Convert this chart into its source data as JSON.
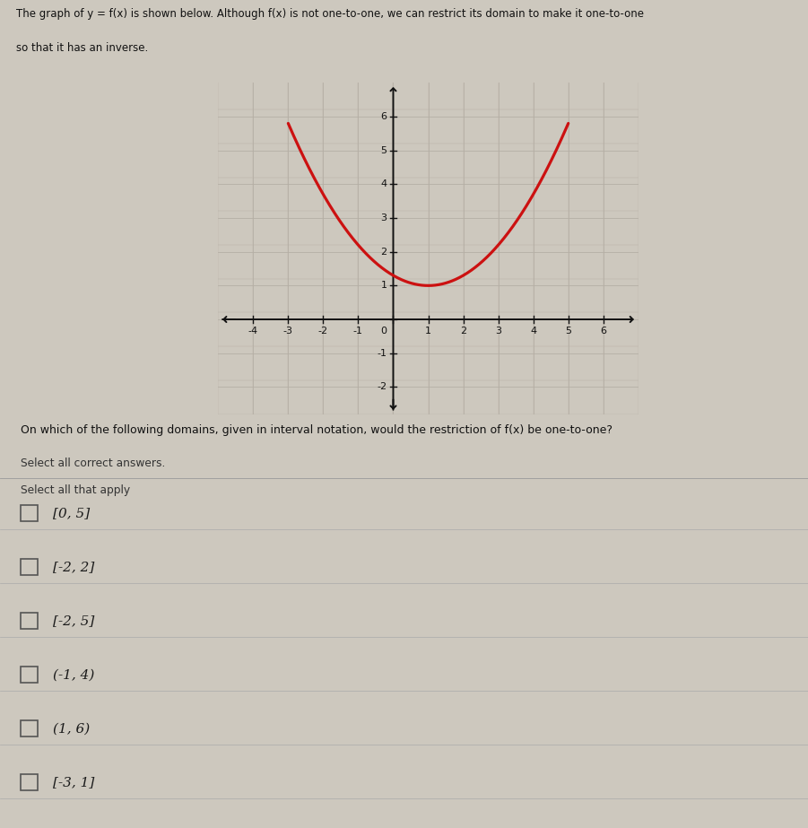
{
  "title_text1": "The graph of y = f(x) is shown below. Although f(x) is not one-to-one, we can restrict its domain to make it one-to-one",
  "title_text2": "so that it has an inverse.",
  "curve_color": "#cc1111",
  "curve_x_start": -3.0,
  "curve_x_end": 5.0,
  "curve_vertex_x": 1.0,
  "curve_vertex_y": 1.0,
  "curve_a": 0.3,
  "bg_color": "#cdc8be",
  "grid_color": "#b5afa5",
  "axis_color": "#111111",
  "xlim": [
    -5.0,
    7.0
  ],
  "ylim": [
    -2.8,
    7.0
  ],
  "xticks": [
    -4,
    -3,
    -2,
    -1,
    0,
    1,
    2,
    3,
    4,
    5,
    6
  ],
  "yticks": [
    -2,
    -1,
    0,
    1,
    2,
    3,
    4,
    5,
    6
  ],
  "question_text": "On which of the following domains, given in interval notation, would the restriction of f(x) be one-to-one?",
  "select_label": "Select all correct answers.",
  "select_apply": "Select all that apply",
  "choices": [
    "[0, 5]",
    "[-2, 2]",
    "[-2, 5]",
    "(-1, 4)",
    "(1, 6)",
    "[-3, 1]"
  ]
}
